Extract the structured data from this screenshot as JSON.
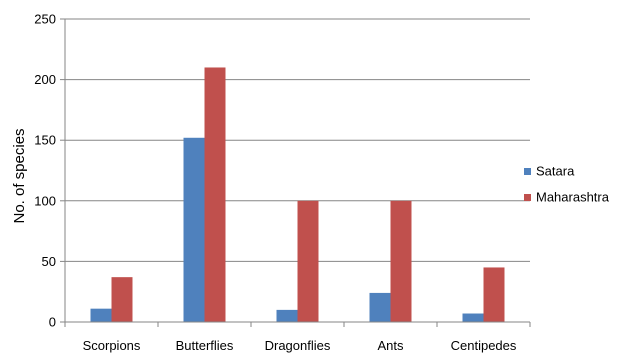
{
  "chart_data": {
    "type": "bar",
    "title": "",
    "xlabel": "",
    "ylabel": "No. of species",
    "categories": [
      "Scorpions",
      "Butterflies",
      "Dragonflies",
      "Ants",
      "Centipedes"
    ],
    "series": [
      {
        "name": "Satara",
        "color": "#4F81BD",
        "values": [
          11,
          152,
          10,
          24,
          7
        ]
      },
      {
        "name": "Maharashtra",
        "color": "#C0504D",
        "values": [
          37,
          210,
          100,
          100,
          45
        ]
      }
    ],
    "ylim": [
      0,
      250
    ],
    "yticks": [
      0,
      50,
      100,
      150,
      200,
      250
    ],
    "grid": true,
    "legend_position": "right"
  }
}
